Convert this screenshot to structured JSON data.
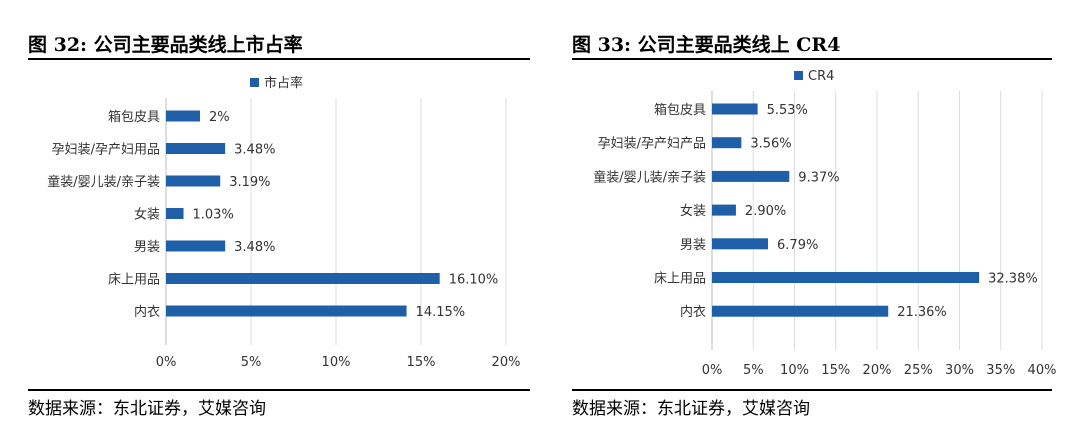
{
  "charts": [
    {
      "figure_title": "图 32: 公司主要品类线上市占率",
      "source": "数据来源：东北证券，艾媒咨询",
      "chart_data": {
        "type": "bar",
        "orientation": "horizontal",
        "categories": [
          "箱包皮具",
          "孕妇装/孕产妇用品",
          "童装/婴儿装/亲子装",
          "女装",
          "男装",
          "床上用品",
          "内衣"
        ],
        "series": [
          {
            "name": "市占率",
            "values": [
              2.0,
              3.48,
              3.19,
              1.03,
              3.48,
              16.1,
              14.15
            ],
            "labels": [
              "2%",
              "3.48%",
              "3.19%",
              "1.03%",
              "3.48%",
              "16.10%",
              "14.15%"
            ]
          }
        ],
        "xlim": [
          0,
          20
        ],
        "xticks": [
          "0%",
          "5%",
          "10%",
          "15%",
          "20%"
        ],
        "grid": "vertical",
        "legend": "top-center",
        "color": "#1f5fa8"
      }
    },
    {
      "figure_title": "图 33: 公司主要品类线上 CR4",
      "source": "数据来源：东北证券，艾媒咨询",
      "chart_data": {
        "type": "bar",
        "orientation": "horizontal",
        "categories": [
          "箱包皮具",
          "孕妇装/孕产妇产品",
          "童装/婴儿装/亲子装",
          "女装",
          "男装",
          "床上用品",
          "内衣"
        ],
        "series": [
          {
            "name": "CR4",
            "values": [
              5.53,
              3.56,
              9.37,
              2.9,
              6.79,
              32.38,
              21.36
            ],
            "labels": [
              "5.53%",
              "3.56%",
              "9.37%",
              "2.90%",
              "6.79%",
              "32.38%",
              "21.36%"
            ]
          }
        ],
        "xlim": [
          0,
          40
        ],
        "xticks": [
          "0%",
          "5%",
          "10%",
          "15%",
          "20%",
          "25%",
          "30%",
          "35%",
          "40%"
        ],
        "grid": "vertical",
        "legend": "top-center",
        "color": "#1f5fa8"
      }
    }
  ]
}
